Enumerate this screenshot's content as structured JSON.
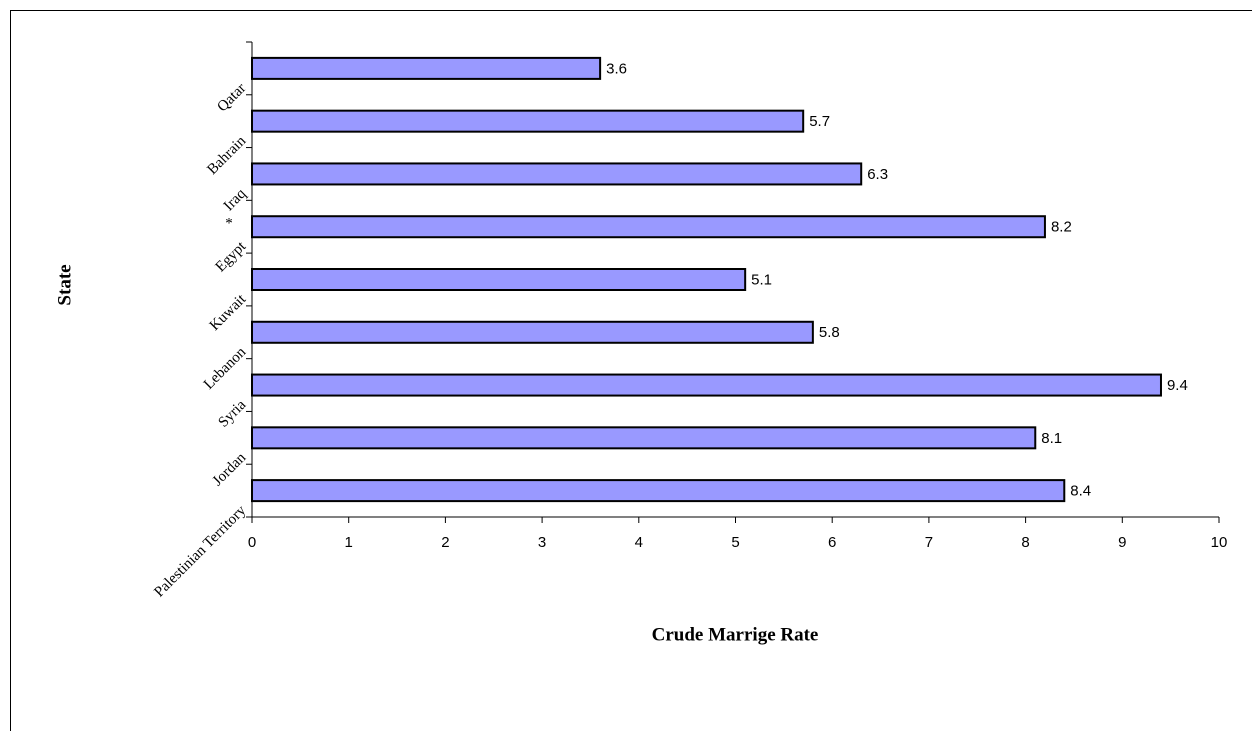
{
  "chart_data": {
    "type": "bar",
    "orientation": "horizontal",
    "categories": [
      "Palestinian Territory",
      "Jordan",
      "Syria",
      "Lebanon",
      "Kuwait",
      "Egypt",
      "Iraq",
      "Bahrain",
      "Qatar"
    ],
    "values": [
      8.4,
      8.1,
      9.4,
      5.8,
      5.1,
      8.2,
      6.3,
      5.7,
      3.6
    ],
    "color": "#9999ff",
    "xlim": [
      0,
      10
    ],
    "xticks": [
      0,
      1,
      2,
      3,
      4,
      5,
      6,
      7,
      8,
      9,
      10
    ],
    "xlabel": "Crude Marrige Rate",
    "ylabel": "State",
    "annotations": [
      "*"
    ],
    "grid": false
  }
}
